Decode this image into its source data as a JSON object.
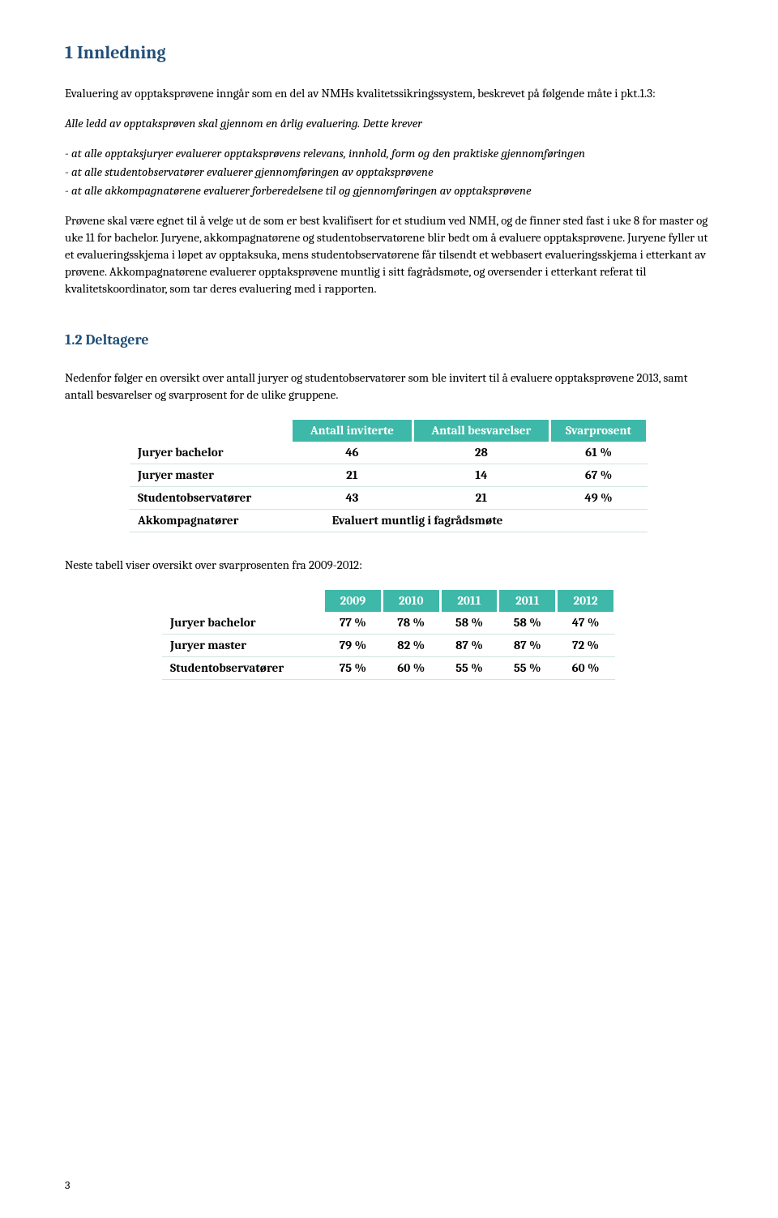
{
  "heading1": "1 Innledning",
  "intro_p1": "Evaluering av opptaksprøvene inngår som en del av NMHs kvalitetssikringssystem, beskrevet på følgende måte i pkt.1.3:",
  "italic_lead": "Alle ledd av opptaksprøven skal gjennom en årlig evaluering. Dette krever",
  "italic_items": [
    "- at alle opptaksjuryer evaluerer opptaksprøvens relevans, innhold, form og den praktiske gjennomføringen",
    "- at alle studentobservatører evaluerer gjennomføringen av opptaksprøvene",
    "- at alle akkompagnatørene evaluerer forberedelsene til og gjennomføringen av opptaksprøvene"
  ],
  "body_p1": "Prøvene skal være egnet til å velge ut de som er best kvalifisert for et studium ved NMH, og de finner sted fast i uke 8 for master og uke 11 for bachelor. Juryene, akkompagnatørene og studentobservatørene blir bedt om å evaluere opptaksprøvene. Juryene fyller ut et evalueringsskjema i løpet av opptaksuka, mens studentobservatørene får tilsendt et webbasert evalueringsskjema i etterkant av prøvene. Akkompagnatørene evaluerer opptaksprøvene muntlig i sitt fagrådsmøte, og oversender i etterkant referat til kvalitetskoordinator, som tar deres evaluering med i rapporten.",
  "heading2": "1.2    Deltagere",
  "participants_intro": "Nedenfor følger en oversikt over antall juryer og studentobservatører som ble invitert til å evaluere opptaksprøvene 2013, samt antall besvarelser og svarprosent for de ulike gruppene.",
  "table1": {
    "headers": [
      "",
      "Antall inviterte",
      "Antall besvarelser",
      "Svarprosent"
    ],
    "rows": [
      [
        "Juryer bachelor",
        "46",
        "28",
        "61 %"
      ],
      [
        "Juryer master",
        "21",
        "14",
        "67 %"
      ],
      [
        "Studentobservatører",
        "43",
        "21",
        "49 %"
      ]
    ],
    "last_row_label": "Akkompagnatører",
    "last_row_merged": "Evaluert muntlig i fagrådsmøte"
  },
  "table2_intro": "Neste tabell viser oversikt over svarprosenten fra 2009-2012:",
  "table2": {
    "headers": [
      "",
      "2009",
      "2010",
      "2011",
      "2011",
      "2012"
    ],
    "rows": [
      [
        "Juryer bachelor",
        "77 %",
        "78 %",
        "58 %",
        "58 %",
        "47 %"
      ],
      [
        "Juryer master",
        "79 %",
        "82 %",
        "87 %",
        "87 %",
        "72 %"
      ],
      [
        "Studentobservatører",
        "75 %",
        "60 %",
        "55 %",
        "55 %",
        "60 %"
      ]
    ]
  },
  "page_number": "3"
}
